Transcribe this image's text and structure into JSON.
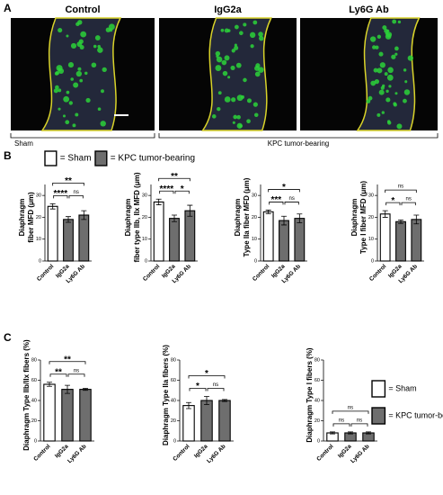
{
  "panel_labels": [
    "A",
    "B",
    "C"
  ],
  "images": {
    "labels": [
      "Control",
      "IgG2a",
      "Ly6G Ab"
    ],
    "groups": [
      "Sham",
      "KPC tumor-bearing"
    ]
  },
  "legend": [
    {
      "label": "= Sham",
      "color": "#ffffff"
    },
    {
      "label": "= KPC tumor-bearing",
      "color": "#6e6e6e"
    }
  ],
  "chart_data": [
    {
      "type": "bar",
      "ylabel": [
        "Diaphragm",
        "fiber MFD (μm)"
      ],
      "categories": [
        "Control",
        "IgG2a",
        "Ly6G Ab"
      ],
      "values": [
        25,
        19,
        21
      ],
      "errors": [
        1.2,
        1.3,
        2
      ],
      "colors": [
        "#ffffff",
        "#6e6e6e",
        "#6e6e6e"
      ],
      "ylim": [
        0,
        35
      ],
      "yticks": [
        0,
        10,
        20,
        30
      ],
      "significance": [
        {
          "pair": [
            0,
            1
          ],
          "label": "****"
        },
        {
          "pair": [
            1,
            2
          ],
          "label": "ns"
        },
        {
          "pair": [
            0,
            2
          ],
          "label": "**"
        }
      ]
    },
    {
      "type": "bar",
      "ylabel": [
        "Diaphragm",
        "fiber type IIb, IIx MFD (μm)"
      ],
      "categories": [
        "Control",
        "IgG2a",
        "Ly6G Ab"
      ],
      "values": [
        27,
        19.5,
        23
      ],
      "errors": [
        1.3,
        1.5,
        2.5
      ],
      "colors": [
        "#ffffff",
        "#6e6e6e",
        "#6e6e6e"
      ],
      "ylim": [
        0,
        35
      ],
      "yticks": [
        0,
        10,
        20,
        30
      ],
      "significance": [
        {
          "pair": [
            0,
            1
          ],
          "label": "****"
        },
        {
          "pair": [
            1,
            2
          ],
          "label": "*"
        },
        {
          "pair": [
            0,
            2
          ],
          "label": "**"
        }
      ]
    },
    {
      "type": "bar",
      "ylabel": [
        "Diaphragm",
        "Type IIa fiber MFD (μm)"
      ],
      "categories": [
        "Control",
        "IgG2a",
        "Ly6G Ab"
      ],
      "values": [
        22.5,
        18.5,
        19.5
      ],
      "errors": [
        0.8,
        2,
        2
      ],
      "colors": [
        "#ffffff",
        "#6e6e6e",
        "#6e6e6e"
      ],
      "ylim": [
        0,
        35
      ],
      "yticks": [
        0,
        10,
        20,
        30
      ],
      "significance": [
        {
          "pair": [
            0,
            1
          ],
          "label": "***"
        },
        {
          "pair": [
            1,
            2
          ],
          "label": "ns"
        },
        {
          "pair": [
            0,
            2
          ],
          "label": "*"
        }
      ]
    },
    {
      "type": "bar",
      "ylabel": [
        "Diaphragm",
        "Type I fiber MFD (μm)"
      ],
      "categories": [
        "Control",
        "IgG2a",
        "Ly6G Ab"
      ],
      "values": [
        21.5,
        18,
        19
      ],
      "errors": [
        1.5,
        0.8,
        2
      ],
      "colors": [
        "#ffffff",
        "#6e6e6e",
        "#6e6e6e"
      ],
      "ylim": [
        0,
        35
      ],
      "yticks": [
        0,
        10,
        20,
        30
      ],
      "significance": [
        {
          "pair": [
            0,
            1
          ],
          "label": "*"
        },
        {
          "pair": [
            1,
            2
          ],
          "label": "ns"
        },
        {
          "pair": [
            0,
            2
          ],
          "label": "ns"
        }
      ]
    },
    {
      "type": "bar",
      "ylabel": [
        "Diaphragm Type IIb/IIx fibers (%)"
      ],
      "categories": [
        "Control",
        "IgG2a",
        "Ly6G Ab"
      ],
      "values": [
        56,
        51,
        51
      ],
      "errors": [
        2,
        4,
        1
      ],
      "colors": [
        "#ffffff",
        "#6e6e6e",
        "#6e6e6e"
      ],
      "ylim": [
        0,
        80
      ],
      "yticks": [
        0,
        20,
        40,
        60,
        80
      ],
      "significance": [
        {
          "pair": [
            0,
            1
          ],
          "label": "**"
        },
        {
          "pair": [
            1,
            2
          ],
          "label": "ns"
        },
        {
          "pair": [
            0,
            2
          ],
          "label": "**"
        }
      ]
    },
    {
      "type": "bar",
      "ylabel": [
        "Diaphragm Type IIa fibers (%)"
      ],
      "categories": [
        "Control",
        "IgG2a",
        "Ly6G Ab"
      ],
      "values": [
        35,
        40,
        40
      ],
      "errors": [
        3,
        4,
        1
      ],
      "colors": [
        "#ffffff",
        "#6e6e6e",
        "#6e6e6e"
      ],
      "ylim": [
        0,
        80
      ],
      "yticks": [
        0,
        20,
        40,
        60,
        80
      ],
      "significance": [
        {
          "pair": [
            0,
            1
          ],
          "label": "*"
        },
        {
          "pair": [
            1,
            2
          ],
          "label": "ns"
        },
        {
          "pair": [
            0,
            2
          ],
          "label": "*"
        }
      ]
    },
    {
      "type": "bar",
      "ylabel": [
        "Diaphragm Type I fibers (%)"
      ],
      "categories": [
        "Control",
        "IgG2a",
        "Ly6G Ab"
      ],
      "values": [
        8,
        8,
        8
      ],
      "errors": [
        1,
        1,
        1
      ],
      "colors": [
        "#ffffff",
        "#6e6e6e",
        "#6e6e6e"
      ],
      "ylim": [
        0,
        80
      ],
      "yticks": [
        0,
        20,
        40,
        60,
        80
      ],
      "significance": [
        {
          "pair": [
            0,
            1
          ],
          "label": "ns"
        },
        {
          "pair": [
            1,
            2
          ],
          "label": "ns"
        },
        {
          "pair": [
            0,
            2
          ],
          "label": "ns"
        }
      ]
    }
  ]
}
